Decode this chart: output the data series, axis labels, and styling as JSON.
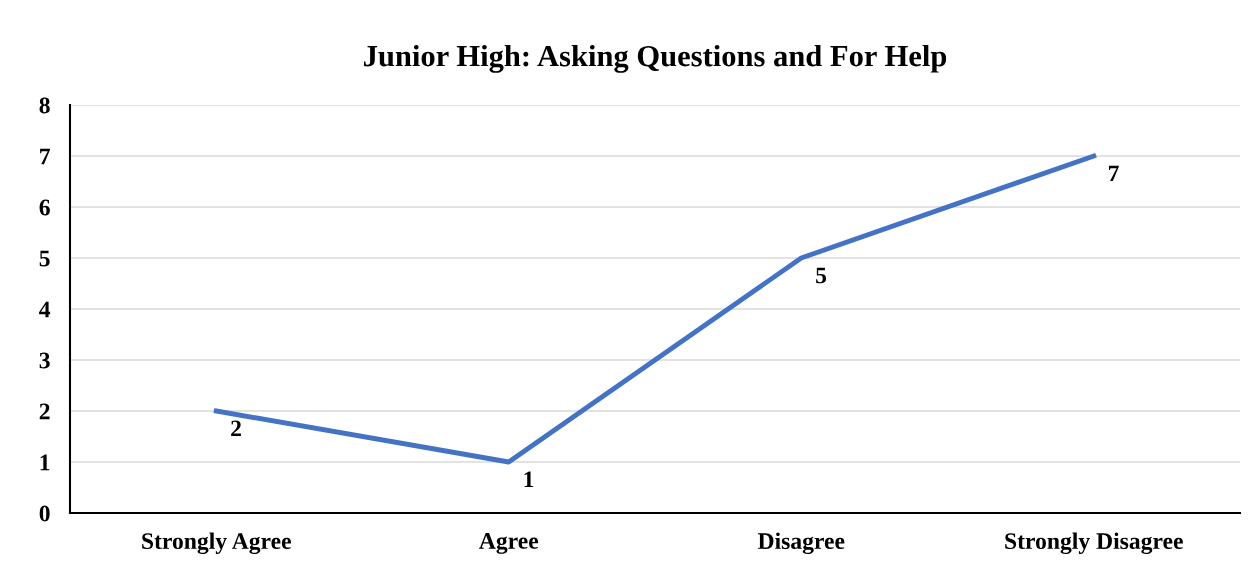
{
  "chart_data": {
    "type": "line",
    "title": "Junior High: Asking Questions and For Help",
    "categories": [
      "Strongly Agree",
      "Agree",
      "Disagree",
      "Strongly Disagree"
    ],
    "series": [
      {
        "color": "#4472c4",
        "values": [
          2,
          1,
          5,
          7
        ]
      }
    ],
    "ylim": [
      0,
      8
    ],
    "yticks": [
      0,
      1,
      2,
      3,
      4,
      5,
      6,
      7,
      8
    ],
    "grid": "y",
    "data_labels": true,
    "marker": "none",
    "line_style": "solid"
  }
}
